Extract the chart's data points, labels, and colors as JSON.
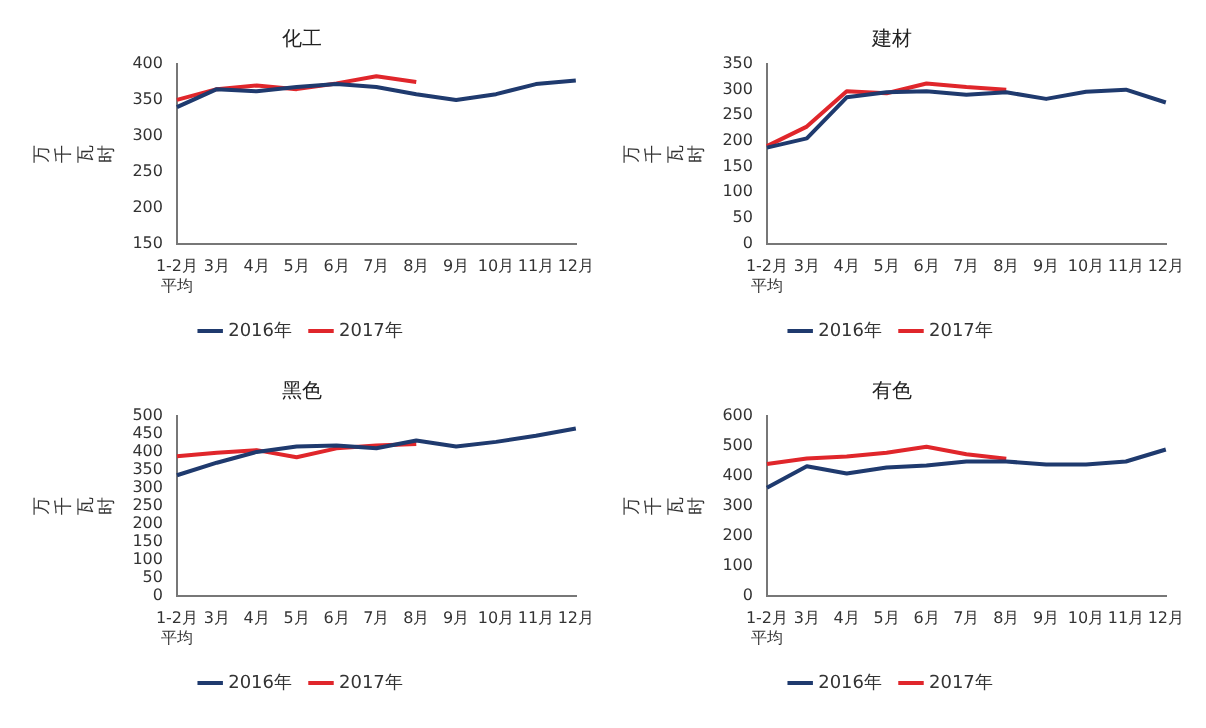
{
  "chart_data": [
    {
      "type": "line",
      "title": "化工",
      "ylabel": "万千瓦时",
      "categories": [
        "1-2月平均",
        "3月",
        "4月",
        "5月",
        "6月",
        "7月",
        "8月",
        "9月",
        "10月",
        "11月",
        "12月"
      ],
      "ylim": [
        150,
        400
      ],
      "yticks": [
        150,
        200,
        250,
        300,
        350,
        400
      ],
      "grid": false,
      "legend": "bottom",
      "marker": "none",
      "series": [
        {
          "name": "2016年",
          "color": "#1f3a6e",
          "values": [
            340,
            365,
            362,
            368,
            372,
            368,
            358,
            350,
            358,
            372,
            377
          ]
        },
        {
          "name": "2017年",
          "color": "#e0262b",
          "values": [
            350,
            365,
            370,
            365,
            373,
            383,
            375,
            null,
            null,
            null,
            null
          ]
        }
      ]
    },
    {
      "type": "line",
      "title": "建材",
      "ylabel": "万千瓦时",
      "categories": [
        "1-2月平均",
        "3月",
        "4月",
        "5月",
        "6月",
        "7月",
        "8月",
        "9月",
        "10月",
        "11月",
        "12月"
      ],
      "ylim": [
        0,
        350
      ],
      "yticks": [
        0,
        50,
        100,
        150,
        200,
        250,
        300,
        350
      ],
      "grid": false,
      "legend": "bottom",
      "marker": "none",
      "series": [
        {
          "name": "2016年",
          "color": "#1f3a6e",
          "values": [
            187,
            205,
            285,
            295,
            297,
            290,
            295,
            282,
            296,
            300,
            275
          ]
        },
        {
          "name": "2017年",
          "color": "#e0262b",
          "values": [
            190,
            228,
            297,
            293,
            312,
            305,
            300,
            null,
            null,
            null,
            null
          ]
        }
      ]
    },
    {
      "type": "line",
      "title": "黑色",
      "ylabel": "万千瓦时",
      "categories": [
        "1-2月平均",
        "3月",
        "4月",
        "5月",
        "6月",
        "7月",
        "8月",
        "9月",
        "10月",
        "11月",
        "12月"
      ],
      "ylim": [
        0,
        500
      ],
      "yticks": [
        0,
        50,
        100,
        150,
        200,
        250,
        300,
        350,
        400,
        450,
        500
      ],
      "grid": false,
      "legend": "bottom",
      "marker": "none",
      "series": [
        {
          "name": "2016年",
          "color": "#1f3a6e",
          "values": [
            335,
            370,
            400,
            415,
            418,
            410,
            432,
            415,
            428,
            445,
            465
          ]
        },
        {
          "name": "2017年",
          "color": "#e0262b",
          "values": [
            388,
            398,
            405,
            385,
            410,
            418,
            422,
            null,
            null,
            null,
            null
          ]
        }
      ]
    },
    {
      "type": "line",
      "title": "有色",
      "ylabel": "万千瓦时",
      "categories": [
        "1-2月平均",
        "3月",
        "4月",
        "5月",
        "6月",
        "7月",
        "8月",
        "9月",
        "10月",
        "11月",
        "12月"
      ],
      "ylim": [
        0,
        600
      ],
      "yticks": [
        0,
        100,
        200,
        300,
        400,
        500,
        600
      ],
      "grid": false,
      "legend": "bottom",
      "marker": "none",
      "series": [
        {
          "name": "2016年",
          "color": "#1f3a6e",
          "values": [
            360,
            432,
            408,
            428,
            435,
            448,
            448,
            438,
            438,
            448,
            488
          ]
        },
        {
          "name": "2017年",
          "color": "#e0262b",
          "values": [
            440,
            458,
            465,
            477,
            497,
            472,
            457,
            null,
            null,
            null,
            null
          ]
        }
      ]
    }
  ]
}
